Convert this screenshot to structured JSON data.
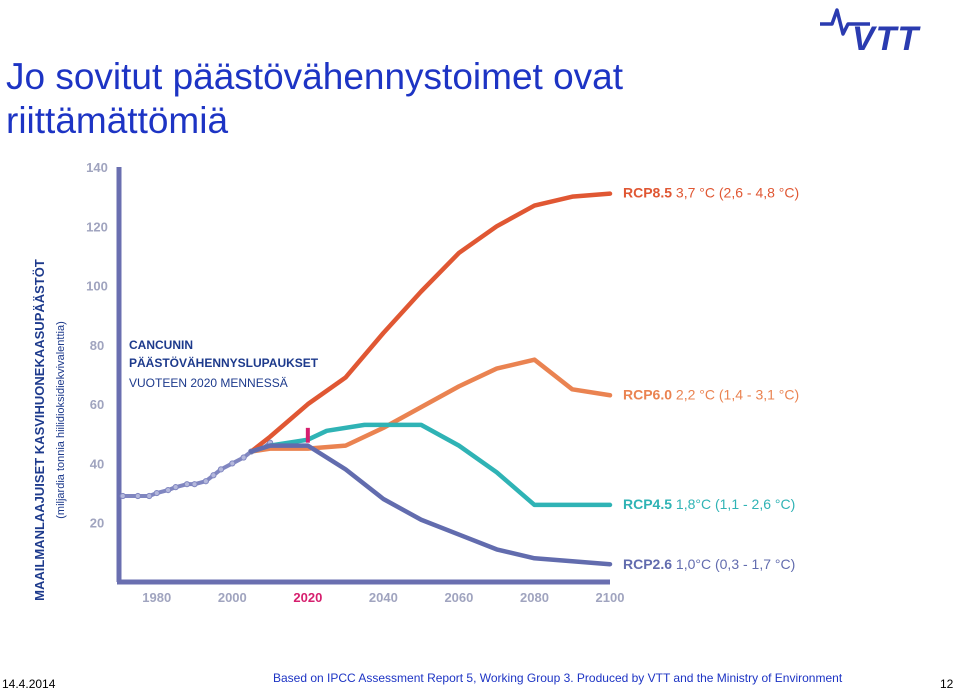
{
  "slide": {
    "title_line1": "Jo sovitut päästövähennystoimet ovat",
    "title_line2": "riittämättömiä",
    "logo_text": "VTT",
    "footer_date": "14.4.2014",
    "footer_source": "Based on IPCC Assessment Report 5, Working Group 3. Produced by VTT and the Ministry of Environment",
    "page_number": "12"
  },
  "colors": {
    "title": "#1d34c4",
    "axis": "#6a6fb0",
    "tick_label": "#a0a4bf",
    "history": "#8086c0",
    "rcp85": "#e05733",
    "rcp60": "#ea8351",
    "rcp45": "#2fb3b5",
    "rcp26": "#626cae",
    "highlight": "#d61f6e",
    "annotation": "#1d3a8c",
    "logo": "#2a3bb0"
  },
  "chart_data": {
    "type": "line",
    "ylabel": "MAAILMANLAAJUISET KASVIHUONEKAASUPÄÄSTÖT",
    "ylabel_sub": "(miljardia tonnia hiilidioksidiekvivalenttia)",
    "xlim": [
      1970,
      2100
    ],
    "ylim": [
      0,
      140
    ],
    "x_ticks": [
      "1980",
      "2000",
      "2020",
      "2040",
      "2060",
      "2080",
      "2100"
    ],
    "x_tick_values": [
      1980,
      2000,
      2020,
      2040,
      2060,
      2080,
      2100
    ],
    "highlight_tick": "2020",
    "y_ticks": [
      "20",
      "40",
      "60",
      "80",
      "100",
      "120",
      "140"
    ],
    "y_tick_values": [
      20,
      40,
      60,
      80,
      100,
      120,
      140
    ],
    "annotation": {
      "lines": [
        "CANCUNIN",
        "PÄÄSTÖVÄHENNYSLUPAUKSET",
        "VUOTEEN 2020 MENNESSÄ"
      ],
      "marker_x": 2020,
      "marker_y": [
        47,
        52
      ]
    },
    "history": {
      "x": [
        1971,
        1975,
        1978,
        1980,
        1983,
        1985,
        1988,
        1990,
        1993,
        1995,
        1997,
        2000,
        2003,
        2005,
        2008,
        2010
      ],
      "values": [
        29,
        29,
        29,
        30,
        31,
        32,
        33,
        33,
        34,
        36,
        38,
        40,
        42,
        44,
        45,
        47
      ]
    },
    "series": [
      {
        "name": "RCP8.5",
        "temp": "3,7 °C (2,6 - 4,8 °C)",
        "x": [
          2005,
          2010,
          2020,
          2030,
          2040,
          2050,
          2060,
          2070,
          2080,
          2090,
          2100
        ],
        "values": [
          44,
          49,
          60,
          69,
          84,
          98,
          111,
          120,
          127,
          130,
          131
        ]
      },
      {
        "name": "RCP6.0",
        "temp": "2,2 °C (1,4 - 3,1 °C)",
        "x": [
          2005,
          2010,
          2020,
          2030,
          2040,
          2050,
          2060,
          2070,
          2080,
          2090,
          2100
        ],
        "values": [
          44,
          45,
          45,
          46,
          52,
          59,
          66,
          72,
          75,
          65,
          63
        ]
      },
      {
        "name": "RCP4.5",
        "temp": "1,8°C (1,1 - 2,6 °C)",
        "x": [
          2005,
          2010,
          2020,
          2025,
          2035,
          2040,
          2050,
          2060,
          2070,
          2080,
          2090,
          2100
        ],
        "values": [
          44,
          46,
          48,
          51,
          53,
          53,
          53,
          46,
          37,
          26,
          26,
          26
        ]
      },
      {
        "name": "RCP2.6",
        "temp": "1,0°C (0,3 - 1,7 °C)",
        "x": [
          2005,
          2010,
          2020,
          2030,
          2040,
          2050,
          2060,
          2070,
          2080,
          2090,
          2100
        ],
        "values": [
          44,
          46,
          46,
          38,
          28,
          21,
          16,
          11,
          8,
          7,
          6
        ]
      }
    ]
  }
}
